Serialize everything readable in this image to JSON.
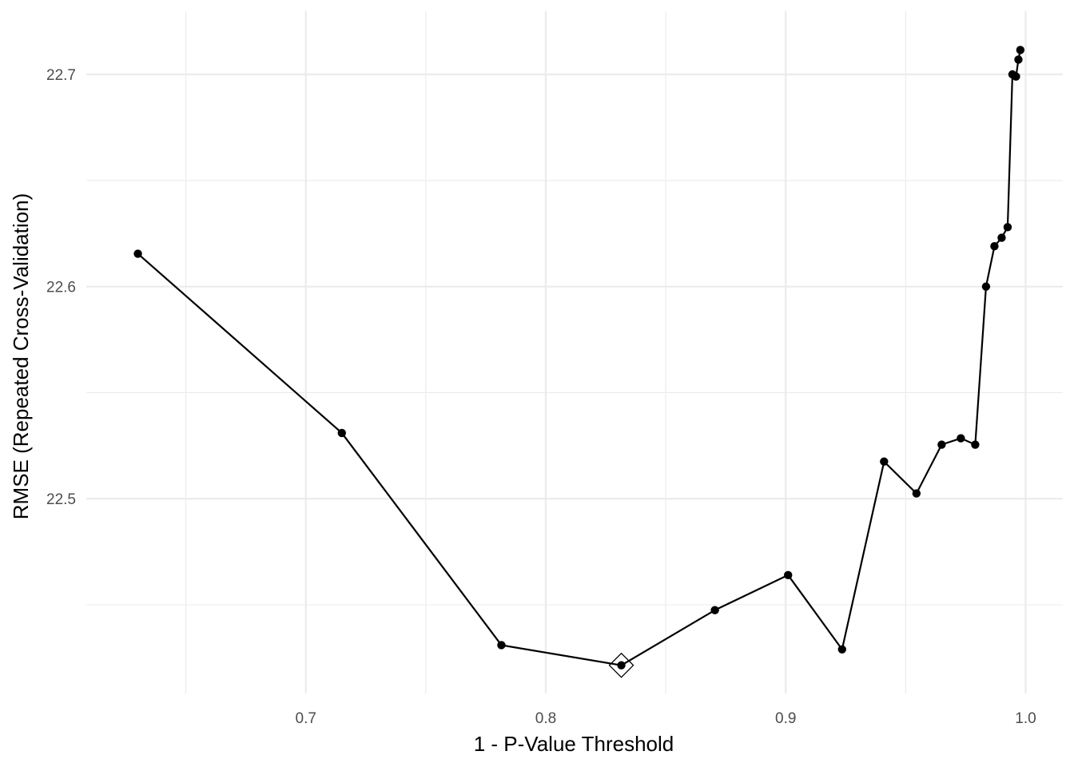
{
  "chart_data": {
    "type": "line",
    "title": "",
    "xlabel": "1 - P-Value Threshold",
    "ylabel": "RMSE (Repeated Cross-Validation)",
    "xlim": [
      0.6085,
      1.0155
    ],
    "ylim": [
      22.4082,
      22.7298
    ],
    "x_major_ticks": [
      0.7,
      0.8,
      0.9,
      1.0
    ],
    "x_tick_labels": [
      "0.7",
      "0.8",
      "0.9",
      "1.0"
    ],
    "x_minor_ticks": [
      0.65,
      0.75,
      0.85,
      0.95
    ],
    "y_major_ticks": [
      22.5,
      22.6,
      22.7
    ],
    "y_tick_labels": [
      "22.5",
      "22.6",
      "22.7"
    ],
    "y_minor_ticks": [
      22.45,
      22.55,
      22.65
    ],
    "grid": true,
    "legend": "none",
    "series": [
      {
        "x": [
          0.63,
          0.715,
          0.7815,
          0.8315,
          0.8705,
          0.901,
          0.9235,
          0.941,
          0.9545,
          0.965,
          0.973,
          0.979,
          0.9835,
          0.987,
          0.99,
          0.9925,
          0.9945,
          0.996,
          0.997,
          0.9978
        ],
        "y": [
          22.6155,
          22.531,
          22.431,
          22.4215,
          22.4475,
          22.464,
          22.429,
          22.5175,
          22.5025,
          22.5255,
          22.5285,
          22.5255,
          22.6,
          22.619,
          22.623,
          22.628,
          22.7,
          22.699,
          22.707,
          22.7115
        ],
        "color": "#000000"
      }
    ],
    "best_point": {
      "x": 0.8315,
      "y": 22.4215,
      "marker": "diamond"
    }
  }
}
